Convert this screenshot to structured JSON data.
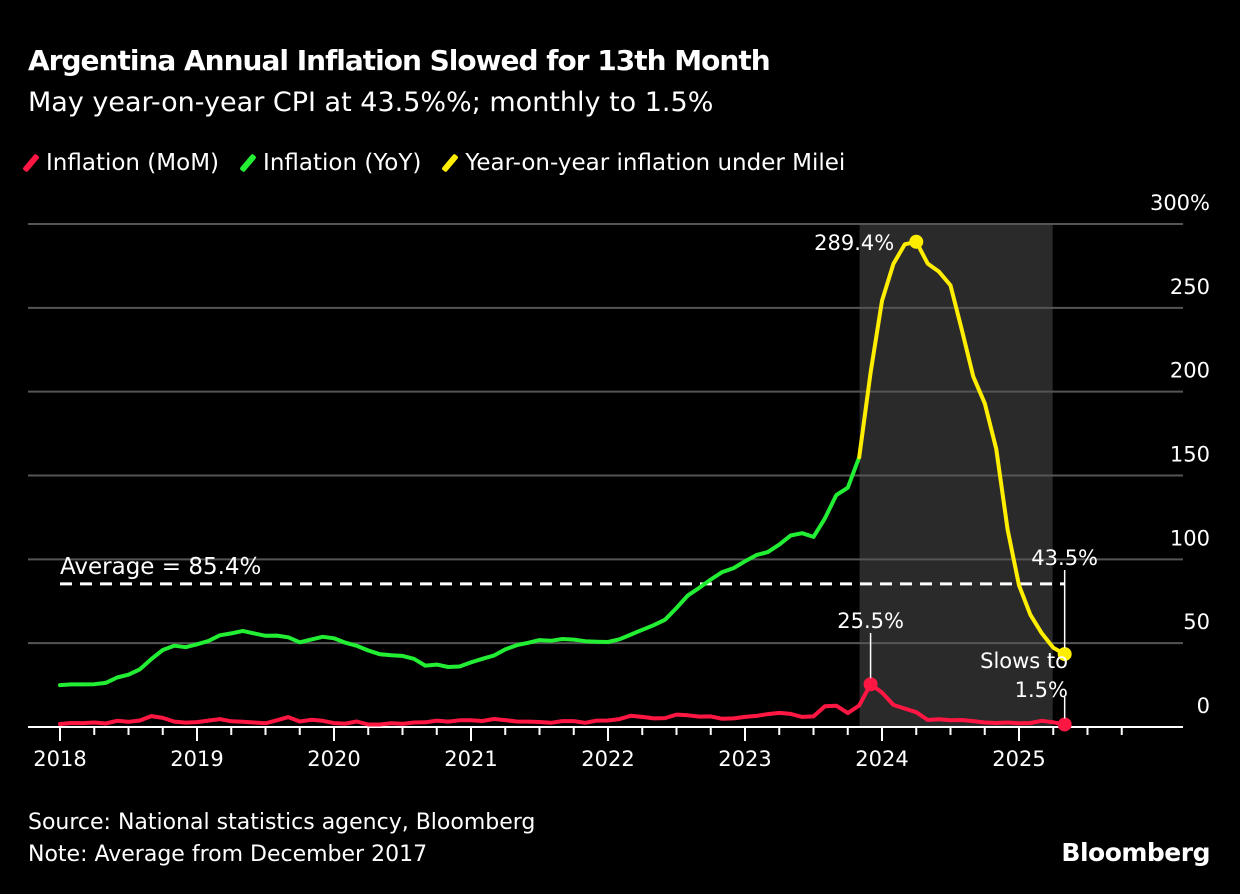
{
  "chart_data": {
    "type": "line",
    "title": "Argentina Annual Inflation Slowed for 13th Month",
    "subtitle": "May year-on-year CPI at 43.5%%; monthly to 1.5%",
    "x_start": "2018-01",
    "x_end": "2025-05",
    "x_frequency": "monthly",
    "x_tick_labels": [
      "2018",
      "2019",
      "2020",
      "2021",
      "2022",
      "2023",
      "2024",
      "2025"
    ],
    "y_tick_labels": [
      "300%",
      "250",
      "200",
      "150",
      "100",
      "50",
      "0"
    ],
    "ylim": [
      0,
      300
    ],
    "grid": true,
    "legend_position": "top",
    "shaded_period": {
      "from": "2023-12",
      "to": "2025-05",
      "color": "#2a2a2a"
    },
    "series": [
      {
        "name": "Inflation (MoM)",
        "color": "#ff1744",
        "values": [
          1.8,
          2.4,
          2.3,
          2.7,
          2.1,
          3.7,
          3.1,
          3.9,
          6.5,
          5.4,
          3.2,
          2.6,
          2.9,
          3.8,
          4.7,
          3.4,
          3.1,
          2.7,
          2.2,
          4.0,
          5.9,
          3.3,
          4.3,
          3.7,
          2.3,
          2.0,
          3.3,
          1.5,
          1.5,
          2.2,
          1.9,
          2.7,
          2.8,
          3.8,
          3.2,
          4.0,
          4.0,
          3.6,
          4.8,
          4.1,
          3.3,
          3.2,
          3.0,
          2.5,
          3.5,
          3.5,
          2.5,
          3.8,
          3.9,
          4.7,
          6.7,
          6.0,
          5.1,
          5.3,
          7.4,
          7.0,
          6.2,
          6.3,
          4.9,
          5.1,
          6.0,
          6.6,
          7.7,
          8.4,
          7.8,
          6.0,
          6.3,
          12.4,
          12.7,
          8.3,
          12.8,
          25.5,
          20.6,
          13.2,
          11.0,
          8.8,
          4.2,
          4.6,
          4.0,
          4.2,
          3.5,
          2.7,
          2.4,
          2.7,
          2.2,
          2.4,
          3.7,
          2.8,
          1.5
        ]
      },
      {
        "name": "Inflation (YoY)",
        "color": "#22ee33",
        "values": [
          25.0,
          25.4,
          25.4,
          25.5,
          26.3,
          29.5,
          31.2,
          34.4,
          40.5,
          45.9,
          48.5,
          47.6,
          49.3,
          51.3,
          54.7,
          55.8,
          57.3,
          55.8,
          54.4,
          54.5,
          53.5,
          50.5,
          52.1,
          53.8,
          52.9,
          50.3,
          48.4,
          45.6,
          43.4,
          42.8,
          42.4,
          40.7,
          36.6,
          37.2,
          35.8,
          36.1,
          38.5,
          40.7,
          42.6,
          46.3,
          48.8,
          50.2,
          51.8,
          51.4,
          52.5,
          52.1,
          51.2,
          50.9,
          50.7,
          52.3,
          55.1,
          58.0,
          60.7,
          64.0,
          71.0,
          78.5,
          83.0,
          88.0,
          92.4,
          94.8,
          98.8,
          102.5,
          104.3,
          108.8,
          114.2,
          115.6,
          113.4,
          124.4,
          138.3,
          142.7,
          160.9
        ]
      },
      {
        "name": "Year-on-year inflation under Milei",
        "color": "#ffee00",
        "start": "2023-11",
        "values": [
          160.9,
          211.4,
          254.2,
          276.2,
          287.9,
          289.4,
          276.4,
          271.5,
          263.4,
          236.7,
          209.0,
          193.0,
          166.0,
          117.8,
          84.5,
          66.9,
          55.9,
          47.3,
          43.5
        ]
      }
    ],
    "average": {
      "label": "Average = 85.4%",
      "value": 85.4
    },
    "annotations": {
      "peak": "289.4%",
      "latest_yoy": "43.5%",
      "mom_peak": "25.5%",
      "latest_mom_line1": "Slows to",
      "latest_mom_line2": "1.5%"
    }
  },
  "footer": {
    "source": "Source: National statistics agency, Bloomberg",
    "note": "Note: Average from December 2017",
    "brand": "Bloomberg"
  }
}
